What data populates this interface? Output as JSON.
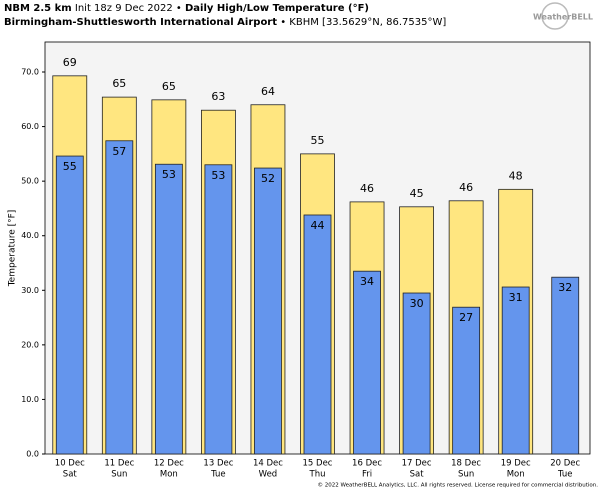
{
  "chart_data": {
    "type": "bar",
    "model": "NBM 2.5 km",
    "init": "Init 18z 9 Dec 2022 •",
    "title": "Daily High/Low Temperature (°F)",
    "station": "Birmingham-Shuttlesworth International Airport",
    "location": "• KBHM [33.5629°N, 86.7535°W]",
    "logo": "WeatherBELL",
    "copyright": "© 2022 WeatherBELL Analytics, LLC. All rights reserved. License required for commercial distribution.",
    "ylabel": "Temperature [°F]",
    "categories": [
      "10 Dec",
      "11 Dec",
      "12 Dec",
      "13 Dec",
      "14 Dec",
      "15 Dec",
      "16 Dec",
      "17 Dec",
      "18 Dec",
      "19 Dec",
      "20 Dec"
    ],
    "days": [
      "Sat",
      "Sun",
      "Mon",
      "Tue",
      "Wed",
      "Thu",
      "Fri",
      "Sat",
      "Sun",
      "Mon",
      "Tue"
    ],
    "series": [
      {
        "color": "#ffe680",
        "values": [
          69.3,
          65.4,
          64.9,
          63.0,
          64.0,
          55.0,
          46.2,
          45.3,
          46.4,
          48.5,
          null
        ],
        "value_labels": [
          "69",
          "65",
          "65",
          "63",
          "64",
          "55",
          "46",
          "45",
          "46",
          "48",
          null
        ]
      },
      {
        "color": "#6495ed",
        "values": [
          54.6,
          57.4,
          53.1,
          53.0,
          52.4,
          43.8,
          33.5,
          29.5,
          26.9,
          30.6,
          32.4
        ],
        "value_labels": [
          "55",
          "57",
          "53",
          "53",
          "52",
          "44",
          "34",
          "30",
          "27",
          "31",
          "32"
        ]
      }
    ],
    "ylim": [
      0,
      75.5
    ],
    "yticks": [
      {
        "value": 0,
        "label": "0.0"
      },
      {
        "value": 10,
        "label": "10.0"
      },
      {
        "value": 20,
        "label": "20.0"
      },
      {
        "value": 30,
        "label": "30.0"
      },
      {
        "value": 40,
        "label": "40.0"
      },
      {
        "value": 50,
        "label": "50.0"
      },
      {
        "value": 60,
        "label": "60.0"
      },
      {
        "value": 70,
        "label": "70.0"
      }
    ],
    "grid": false
  }
}
